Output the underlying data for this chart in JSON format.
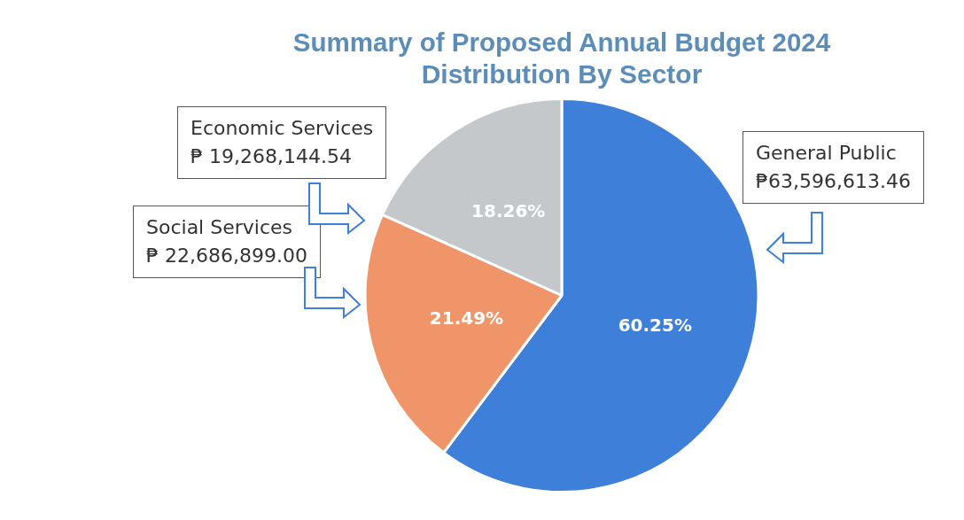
{
  "chart_data": {
    "type": "pie",
    "title": "Summary of Proposed Annual Budget 2024",
    "subtitle": "Distribution By Sector",
    "categories": [
      "General Public",
      "Social Services",
      "Economic Services"
    ],
    "values": [
      60.25,
      21.49,
      18.26
    ],
    "colors": [
      "#3d7fd9",
      "#f0956a",
      "#c5c8cb"
    ],
    "value_labels": [
      "60.25%",
      "21.49%",
      "18.26%"
    ],
    "annotations": [
      "₱63,596,613.46",
      "₱ 22,686,899.00",
      "₱ 19,268,144.54"
    ],
    "legend": false
  }
}
